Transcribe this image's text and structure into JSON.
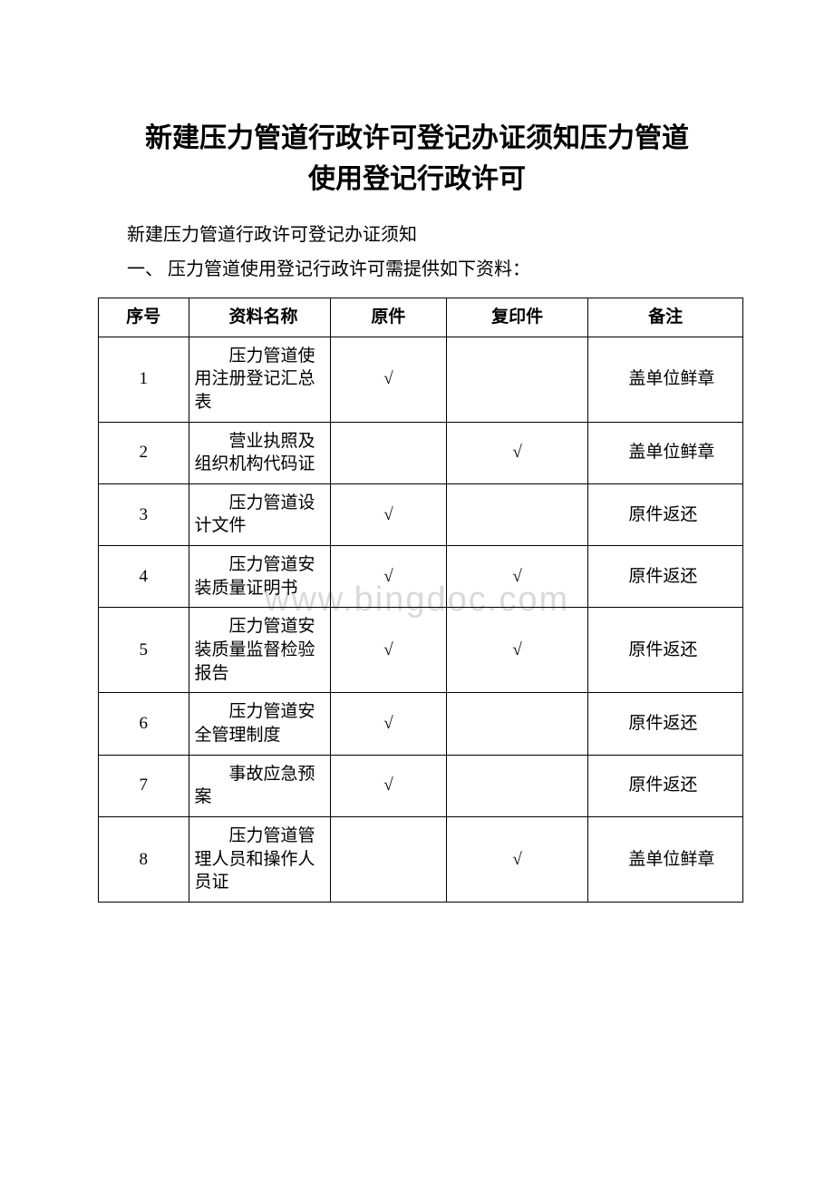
{
  "watermark": "www.bingdoc.com",
  "title_line1": "新建压力管道行政许可登记办证须知压力管道",
  "title_line2": "使用登记行政许可",
  "intro_para": "新建压力管道行政许可登记办证须知",
  "section_para": "一、 压力管道使用登记行政许可需提供如下资料：",
  "table": {
    "headers": {
      "seq": "序号",
      "name": "资料名称",
      "orig": "原件",
      "copy": "复印件",
      "note": "备注"
    },
    "rows": [
      {
        "seq": "1",
        "name": "压力管道使用注册登记汇总表",
        "orig": "√",
        "copy": "",
        "note": "盖单位鲜章"
      },
      {
        "seq": "2",
        "name": "营业执照及组织机构代码证",
        "orig": "",
        "copy": "√",
        "note": "盖单位鲜章"
      },
      {
        "seq": "3",
        "name": "压力管道设计文件",
        "orig": "√",
        "copy": "",
        "note": "原件返还"
      },
      {
        "seq": "4",
        "name": "压力管道安装质量证明书",
        "orig": "√",
        "copy": "√",
        "note": "原件返还"
      },
      {
        "seq": "5",
        "name": "压力管道安装质量监督检验报告",
        "orig": "√",
        "copy": "√",
        "note": "原件返还"
      },
      {
        "seq": "6",
        "name": "压力管道安全管理制度",
        "orig": "√",
        "copy": "",
        "note": "原件返还"
      },
      {
        "seq": "7",
        "name": "事故应急预案",
        "orig": "√",
        "copy": "",
        "note": "原件返还"
      },
      {
        "seq": "8",
        "name": "压力管道管理人员和操作人员证",
        "orig": "",
        "copy": "√",
        "note": "盖单位鲜章"
      }
    ]
  }
}
